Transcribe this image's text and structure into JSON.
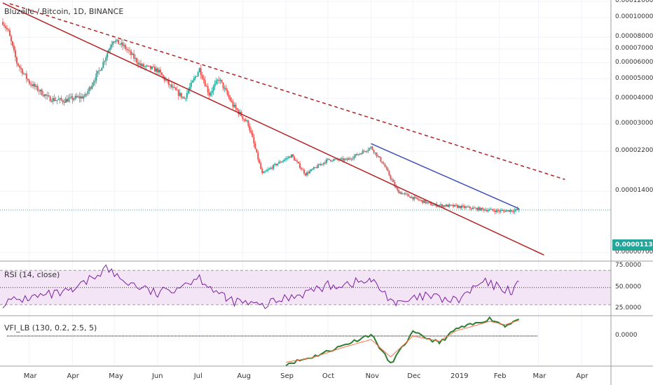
{
  "header": {
    "symbol_title": "Bluzelle / Bitcoin, 1D, BINANCE"
  },
  "current_price": "0.00001132",
  "price_axis": {
    "labels": [
      "0.00012000",
      "0.00010000",
      "0.00008000",
      "0.00007000",
      "0.00006000",
      "0.00005000",
      "0.00004000",
      "0.00003000",
      "0.00002200",
      "0.00001400",
      "0.00000700"
    ],
    "scale": "log"
  },
  "rsi_panel": {
    "title": "RSI (14, close)",
    "labels": [
      "75.0000",
      "50.0000",
      "25.0000"
    ],
    "band": [
      30,
      70
    ]
  },
  "vfi_panel": {
    "title": "VFI_LB (130, 0.2, 2.5, 5)",
    "labels": [
      "0.0000"
    ]
  },
  "time_axis": {
    "labels": [
      "Mar",
      "Apr",
      "May",
      "Jun",
      "Jul",
      "Aug",
      "Sep",
      "Oct",
      "Nov",
      "Dec",
      "2019",
      "Feb",
      "Mar",
      "Apr"
    ]
  },
  "colors": {
    "up": "#26a69a",
    "down": "#ef5350",
    "trendline": "#b22222",
    "blue_trendline": "#3f51b5",
    "rsi_line": "#7b1fa2",
    "rsi_band": "#f3e5f5",
    "vfi_line": "#2e7d32",
    "vfi_signal": "#ff7043"
  },
  "chart_data": [
    {
      "type": "candlestick",
      "title": "Bluzelle / Bitcoin, 1D, BINANCE",
      "yscale": "log",
      "ylim": [
        7e-06,
        0.00012
      ],
      "current_value": 1.132e-05,
      "price_path": [
        [
          "2018-02-10",
          9.5e-05
        ],
        [
          "2018-02-14",
          8.5e-05
        ],
        [
          "2018-02-20",
          6e-05
        ],
        [
          "2018-03-01",
          4.8e-05
        ],
        [
          "2018-03-15",
          4e-05
        ],
        [
          "2018-03-25",
          3.9e-05
        ],
        [
          "2018-04-01",
          4e-05
        ],
        [
          "2018-04-10",
          4.1e-05
        ],
        [
          "2018-04-22",
          5.8e-05
        ],
        [
          "2018-04-30",
          7.8e-05
        ],
        [
          "2018-05-08",
          7.2e-05
        ],
        [
          "2018-05-20",
          5.8e-05
        ],
        [
          "2018-06-01",
          5.5e-05
        ],
        [
          "2018-06-10",
          4.6e-05
        ],
        [
          "2018-06-20",
          4e-05
        ],
        [
          "2018-07-01",
          5.6e-05
        ],
        [
          "2018-07-08",
          4.2e-05
        ],
        [
          "2018-07-15",
          5e-05
        ],
        [
          "2018-07-25",
          3.7e-05
        ],
        [
          "2018-08-05",
          3e-05
        ],
        [
          "2018-08-15",
          1.7e-05
        ],
        [
          "2018-08-25",
          1.9e-05
        ],
        [
          "2018-09-05",
          2.1e-05
        ],
        [
          "2018-09-15",
          1.7e-05
        ],
        [
          "2018-10-01",
          2e-05
        ],
        [
          "2018-10-15",
          2e-05
        ],
        [
          "2018-11-01",
          2.3e-05
        ],
        [
          "2018-11-10",
          1.9e-05
        ],
        [
          "2018-11-20",
          1.4e-05
        ],
        [
          "2018-12-01",
          1.3e-05
        ],
        [
          "2018-12-15",
          1.2e-05
        ],
        [
          "2019-01-01",
          1.18e-05
        ],
        [
          "2019-01-15",
          1.15e-05
        ],
        [
          "2019-02-01",
          1.12e-05
        ],
        [
          "2019-02-15",
          1.132e-05
        ]
      ],
      "trendlines": [
        {
          "style": "solid",
          "from": [
            "2018-02-10",
            0.000118
          ],
          "to": [
            "2019-03-05",
            6.8e-06
          ]
        },
        {
          "style": "dashed",
          "from": [
            "2018-02-15",
            0.000117
          ],
          "to": [
            "2019-03-20",
            1.6e-05
          ]
        },
        {
          "style": "solid-blue",
          "from": [
            "2018-11-01",
            2.4e-05
          ],
          "to": [
            "2019-02-15",
            1.15e-05
          ]
        }
      ]
    },
    {
      "type": "line",
      "title": "RSI (14, close)",
      "ylim": [
        20,
        80
      ],
      "bands": [
        30,
        70
      ],
      "midline": 50,
      "x": [
        "2018-02-10",
        "2018-03-01",
        "2018-04-01",
        "2018-04-25",
        "2018-05-05",
        "2018-06-01",
        "2018-07-01",
        "2018-07-20",
        "2018-08-15",
        "2018-09-01",
        "2018-10-01",
        "2018-11-01",
        "2018-11-20",
        "2018-12-10",
        "2019-01-01",
        "2019-01-20",
        "2019-02-10",
        "2019-02-15"
      ],
      "series": [
        {
          "name": "RSI (14, close)",
          "values": [
            32,
            38,
            45,
            73,
            60,
            42,
            62,
            36,
            28,
            38,
            52,
            58,
            30,
            40,
            34,
            56,
            46,
            57
          ]
        }
      ]
    },
    {
      "type": "line",
      "title": "VFI_LB (130, 0.2, 2.5, 5)",
      "zero_line": 0,
      "x": [
        "2018-09-01",
        "2018-09-20",
        "2018-10-10",
        "2018-11-01",
        "2018-11-15",
        "2018-12-01",
        "2018-12-20",
        "2019-01-01",
        "2019-01-15",
        "2019-01-25",
        "2019-02-05",
        "2019-02-15"
      ],
      "series": [
        {
          "name": "VFI",
          "values": [
            -0.8,
            -0.6,
            -0.3,
            0.05,
            -0.8,
            0.1,
            -0.2,
            0.2,
            0.35,
            0.5,
            0.3,
            0.48
          ]
        },
        {
          "name": "signal",
          "values": [
            -0.75,
            -0.62,
            -0.35,
            -0.1,
            -0.6,
            0.0,
            -0.15,
            0.15,
            0.3,
            0.42,
            0.32,
            0.45
          ]
        }
      ]
    }
  ]
}
